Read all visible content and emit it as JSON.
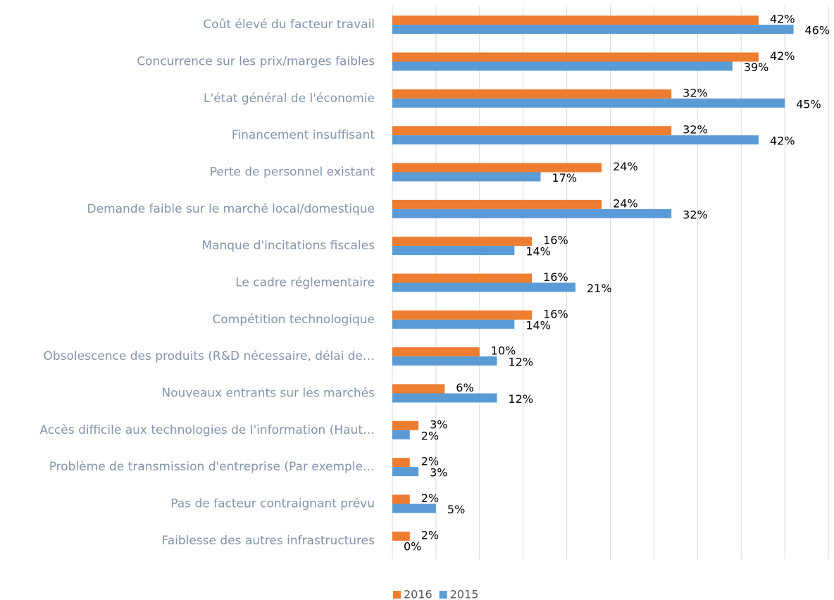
{
  "chart_data": {
    "type": "hbar",
    "categories": [
      "Coût élevé du facteur travail",
      "Concurrence sur les prix/marges faibles",
      "L'état général de l'économie",
      "Financement insuffisant",
      "Perte de personnel existant",
      "Demande faible sur le marché local/domestique",
      "Manque d'incitations fiscales",
      "Le cadre réglementaire",
      "Compétition technologique",
      "Obsolescence des produits (R&D nécessaire, délai de…",
      "Nouveaux entrants sur les marchés",
      "Accès difficile aux technologies de l'information (Haut…",
      "Problème de transmission d'entreprise (Par exemple…",
      "Pas de facteur contraignant prévu",
      "Faiblesse des autres infrastructures"
    ],
    "series": [
      {
        "name": "2016",
        "color": "#ed7d31",
        "values": [
          42,
          42,
          32,
          32,
          24,
          24,
          16,
          16,
          16,
          10,
          6,
          3,
          2,
          2,
          2
        ],
        "value_labels": [
          "42%",
          "42%",
          "32%",
          "32%",
          "24%",
          "24%",
          "16%",
          "16%",
          "16%",
          "10%",
          "6%",
          "3%",
          "2%",
          "2%",
          "2%"
        ]
      },
      {
        "name": "2015",
        "color": "#5b9bd5",
        "values": [
          46,
          39,
          45,
          42,
          17,
          32,
          14,
          21,
          14,
          12,
          12,
          2,
          3,
          5,
          0
        ],
        "value_labels": [
          "46%",
          "39%",
          "45%",
          "42%",
          "17%",
          "32%",
          "14%",
          "21%",
          "14%",
          "12%",
          "12%",
          "2%",
          "3%",
          "5%",
          "0%"
        ]
      }
    ],
    "xlim": [
      0,
      50
    ],
    "xticks": [
      0,
      5,
      10,
      15,
      20,
      25,
      30,
      35,
      40,
      45,
      50
    ],
    "grid": true,
    "legend": "bottom"
  }
}
